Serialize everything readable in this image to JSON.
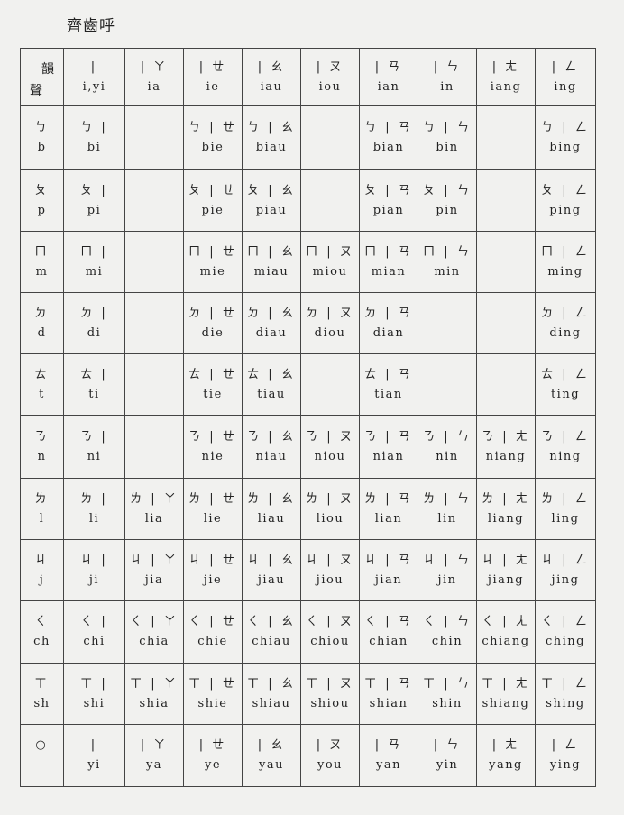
{
  "title": "齊齒呼",
  "header": {
    "corner_top": "韻",
    "corner_bottom": "聲",
    "finals": [
      {
        "z": "|",
        "p": "i,yi"
      },
      {
        "z": "| ㄚ",
        "p": "ia"
      },
      {
        "z": "| ㄝ",
        "p": "ie"
      },
      {
        "z": "| ㄠ",
        "p": "iau"
      },
      {
        "z": "| ㄡ",
        "p": "iou"
      },
      {
        "z": "| ㄢ",
        "p": "ian"
      },
      {
        "z": "| ㄣ",
        "p": "in"
      },
      {
        "z": "| ㄤ",
        "p": "iang"
      },
      {
        "z": "| ㄥ",
        "p": "ing"
      }
    ]
  },
  "rows": [
    {
      "initial": {
        "z": "ㄅ",
        "p": "b"
      },
      "cells": [
        {
          "z": "ㄅ |",
          "p": "bi"
        },
        null,
        {
          "z": "ㄅ | ㄝ",
          "p": "bie"
        },
        {
          "z": "ㄅ | ㄠ",
          "p": "biau"
        },
        null,
        {
          "z": "ㄅ | ㄢ",
          "p": "bian"
        },
        {
          "z": "ㄅ | ㄣ",
          "p": "bin"
        },
        null,
        {
          "z": "ㄅ | ㄥ",
          "p": "bing"
        }
      ]
    },
    {
      "initial": {
        "z": "ㄆ",
        "p": "p"
      },
      "cells": [
        {
          "z": "ㄆ |",
          "p": "pi"
        },
        null,
        {
          "z": "ㄆ | ㄝ",
          "p": "pie"
        },
        {
          "z": "ㄆ | ㄠ",
          "p": "piau"
        },
        null,
        {
          "z": "ㄆ | ㄢ",
          "p": "pian"
        },
        {
          "z": "ㄆ | ㄣ",
          "p": "pin"
        },
        null,
        {
          "z": "ㄆ | ㄥ",
          "p": "ping"
        }
      ]
    },
    {
      "initial": {
        "z": "ㄇ",
        "p": "m"
      },
      "cells": [
        {
          "z": "ㄇ |",
          "p": "mi"
        },
        null,
        {
          "z": "ㄇ | ㄝ",
          "p": "mie"
        },
        {
          "z": "ㄇ | ㄠ",
          "p": "miau"
        },
        {
          "z": "ㄇ | ㄡ",
          "p": "miou"
        },
        {
          "z": "ㄇ | ㄢ",
          "p": "mian"
        },
        {
          "z": "ㄇ | ㄣ",
          "p": "min"
        },
        null,
        {
          "z": "ㄇ | ㄥ",
          "p": "ming"
        }
      ]
    },
    {
      "initial": {
        "z": "ㄉ",
        "p": "d"
      },
      "cells": [
        {
          "z": "ㄉ |",
          "p": "di"
        },
        null,
        {
          "z": "ㄉ | ㄝ",
          "p": "die"
        },
        {
          "z": "ㄉ | ㄠ",
          "p": "diau"
        },
        {
          "z": "ㄉ | ㄡ",
          "p": "diou"
        },
        {
          "z": "ㄉ | ㄢ",
          "p": "dian"
        },
        null,
        null,
        {
          "z": "ㄉ | ㄥ",
          "p": "ding"
        }
      ]
    },
    {
      "initial": {
        "z": "ㄊ",
        "p": "t"
      },
      "cells": [
        {
          "z": "ㄊ |",
          "p": "ti"
        },
        null,
        {
          "z": "ㄊ | ㄝ",
          "p": "tie"
        },
        {
          "z": "ㄊ | ㄠ",
          "p": "tiau"
        },
        null,
        {
          "z": "ㄊ | ㄢ",
          "p": "tian"
        },
        null,
        null,
        {
          "z": "ㄊ | ㄥ",
          "p": "ting"
        }
      ]
    },
    {
      "initial": {
        "z": "ㄋ",
        "p": "n"
      },
      "cells": [
        {
          "z": "ㄋ |",
          "p": "ni"
        },
        null,
        {
          "z": "ㄋ | ㄝ",
          "p": "nie"
        },
        {
          "z": "ㄋ | ㄠ",
          "p": "niau"
        },
        {
          "z": "ㄋ | ㄡ",
          "p": "niou"
        },
        {
          "z": "ㄋ | ㄢ",
          "p": "nian"
        },
        {
          "z": "ㄋ | ㄣ",
          "p": "nin"
        },
        {
          "z": "ㄋ | ㄤ",
          "p": "niang"
        },
        {
          "z": "ㄋ | ㄥ",
          "p": "ning"
        }
      ]
    },
    {
      "initial": {
        "z": "ㄌ",
        "p": "l"
      },
      "cells": [
        {
          "z": "ㄌ |",
          "p": "li"
        },
        {
          "z": "ㄌ | ㄚ",
          "p": "lia"
        },
        {
          "z": "ㄌ | ㄝ",
          "p": "lie"
        },
        {
          "z": "ㄌ | ㄠ",
          "p": "liau"
        },
        {
          "z": "ㄌ | ㄡ",
          "p": "liou"
        },
        {
          "z": "ㄌ | ㄢ",
          "p": "lian"
        },
        {
          "z": "ㄌ | ㄣ",
          "p": "lin"
        },
        {
          "z": "ㄌ | ㄤ",
          "p": "liang"
        },
        {
          "z": "ㄌ | ㄥ",
          "p": "ling"
        }
      ]
    },
    {
      "initial": {
        "z": "ㄐ",
        "p": "j"
      },
      "cells": [
        {
          "z": "ㄐ |",
          "p": "ji"
        },
        {
          "z": "ㄐ | ㄚ",
          "p": "jia"
        },
        {
          "z": "ㄐ | ㄝ",
          "p": "jie"
        },
        {
          "z": "ㄐ | ㄠ",
          "p": "jiau"
        },
        {
          "z": "ㄐ | ㄡ",
          "p": "jiou"
        },
        {
          "z": "ㄐ | ㄢ",
          "p": "jian"
        },
        {
          "z": "ㄐ | ㄣ",
          "p": "jin"
        },
        {
          "z": "ㄐ | ㄤ",
          "p": "jiang"
        },
        {
          "z": "ㄐ | ㄥ",
          "p": "jing"
        }
      ]
    },
    {
      "initial": {
        "z": "ㄑ",
        "p": "ch"
      },
      "cells": [
        {
          "z": "ㄑ |",
          "p": "chi"
        },
        {
          "z": "ㄑ | ㄚ",
          "p": "chia"
        },
        {
          "z": "ㄑ | ㄝ",
          "p": "chie"
        },
        {
          "z": "ㄑ | ㄠ",
          "p": "chiau"
        },
        {
          "z": "ㄑ | ㄡ",
          "p": "chiou"
        },
        {
          "z": "ㄑ | ㄢ",
          "p": "chian"
        },
        {
          "z": "ㄑ | ㄣ",
          "p": "chin"
        },
        {
          "z": "ㄑ | ㄤ",
          "p": "chiang"
        },
        {
          "z": "ㄑ | ㄥ",
          "p": "ching"
        }
      ]
    },
    {
      "initial": {
        "z": "ㄒ",
        "p": "sh"
      },
      "cells": [
        {
          "z": "ㄒ |",
          "p": "shi"
        },
        {
          "z": "ㄒ | ㄚ",
          "p": "shia"
        },
        {
          "z": "ㄒ | ㄝ",
          "p": "shie"
        },
        {
          "z": "ㄒ | ㄠ",
          "p": "shiau"
        },
        {
          "z": "ㄒ | ㄡ",
          "p": "shiou"
        },
        {
          "z": "ㄒ | ㄢ",
          "p": "shian"
        },
        {
          "z": "ㄒ | ㄣ",
          "p": "shin"
        },
        {
          "z": "ㄒ | ㄤ",
          "p": "shiang"
        },
        {
          "z": "ㄒ | ㄥ",
          "p": "shing"
        }
      ]
    },
    {
      "initial": {
        "z": "○",
        "p": ""
      },
      "cells": [
        {
          "z": "|",
          "p": "yi"
        },
        {
          "z": "| ㄚ",
          "p": "ya"
        },
        {
          "z": "| ㄝ",
          "p": "ye"
        },
        {
          "z": "| ㄠ",
          "p": "yau"
        },
        {
          "z": "| ㄡ",
          "p": "you"
        },
        {
          "z": "| ㄢ",
          "p": "yan"
        },
        {
          "z": "| ㄣ",
          "p": "yin"
        },
        {
          "z": "| ㄤ",
          "p": "yang"
        },
        {
          "z": "| ㄥ",
          "p": "ying"
        }
      ]
    }
  ]
}
